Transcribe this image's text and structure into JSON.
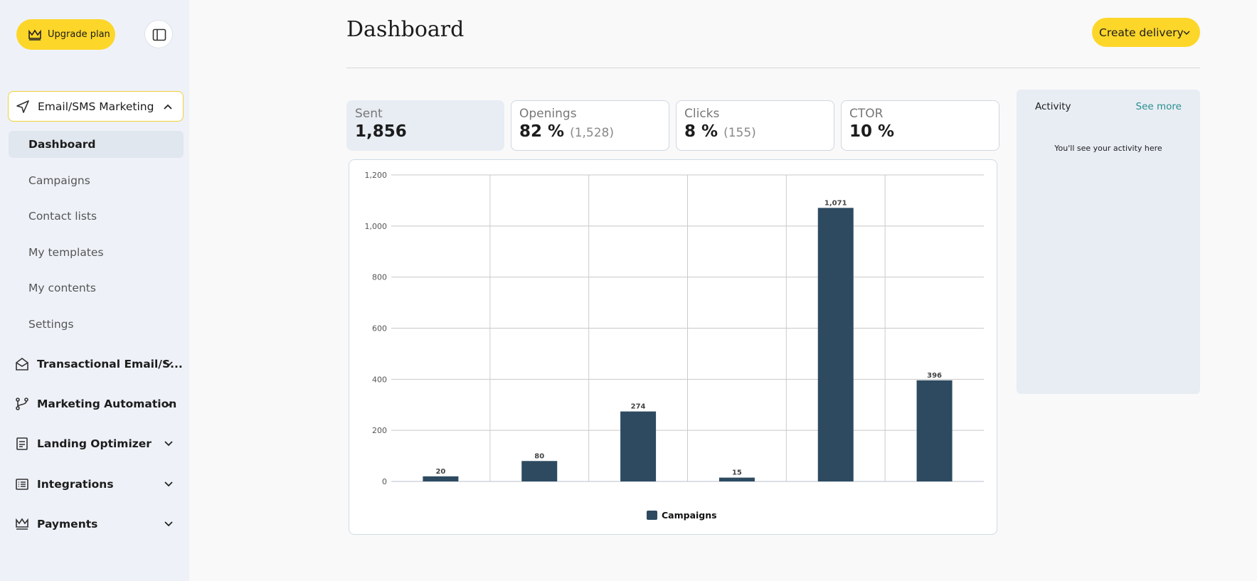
{
  "sidebar": {
    "upgrade": "Upgrade plan",
    "section": "Email/SMS Marketing",
    "items": [
      "Dashboard",
      "Campaigns",
      "Contact lists",
      "My templates",
      "My contents",
      "Settings"
    ],
    "groups": [
      "Transactional Email/S...",
      "Marketing Automation",
      "Landing Optimizer",
      "Integrations",
      "Payments"
    ]
  },
  "header": {
    "title": "Dashboard",
    "button": "Create delivery"
  },
  "stats": [
    {
      "label": "Sent",
      "value": "1,856"
    },
    {
      "label": "Openings",
      "value": "82 %",
      "detail": "(1,528)"
    },
    {
      "label": "Clicks",
      "value": "8 %",
      "detail": "(155)"
    },
    {
      "label": "CTOR",
      "value": "10 %"
    }
  ],
  "chart_data": {
    "type": "bar",
    "categories": [
      null,
      null,
      null,
      null,
      null,
      null
    ],
    "series": [
      {
        "name": "Campaigns",
        "color": "#2d4a60",
        "values": [
          20,
          80,
          274,
          15,
          1071,
          396
        ],
        "value_labels": [
          "20",
          "80",
          "274",
          "15",
          "1,071",
          "396"
        ]
      }
    ],
    "ylim": [
      0,
      1200
    ],
    "yticks": [
      0,
      200,
      400,
      600,
      800,
      {
        "value": 1000,
        "label": "1,000"
      },
      {
        "value": 1200,
        "label": "1,200"
      }
    ],
    "grid": true
  },
  "activity": {
    "title": "Activity",
    "link": "See more",
    "empty": "You'll see your activity here"
  }
}
